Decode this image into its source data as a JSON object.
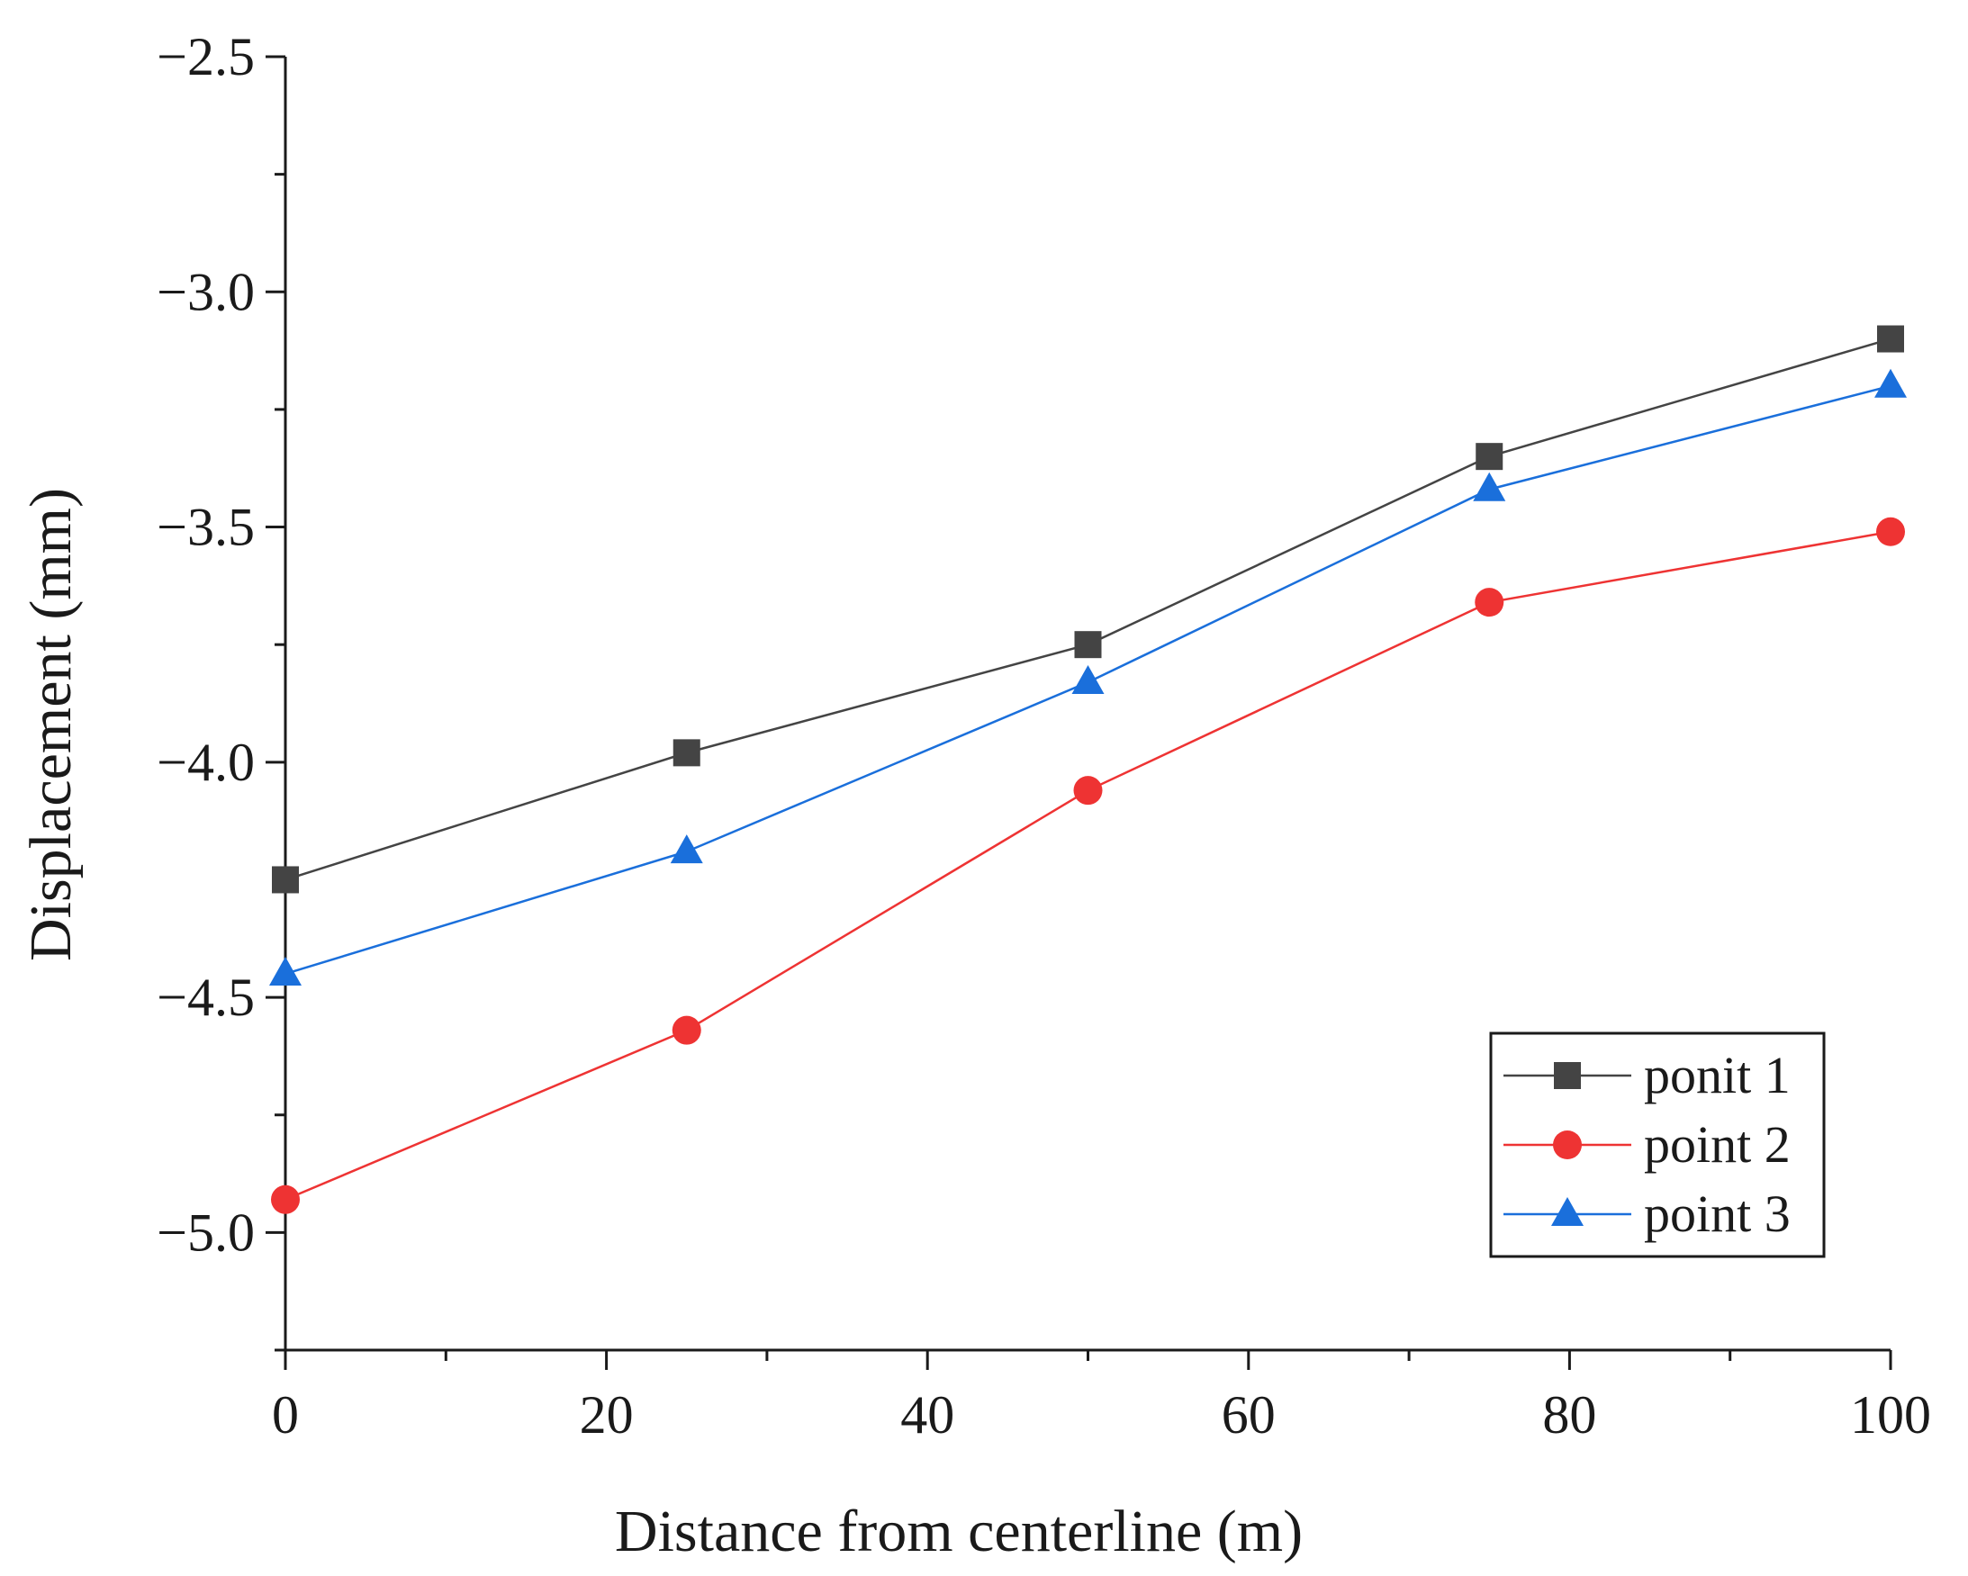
{
  "chart_data": {
    "type": "line",
    "title": "",
    "xlabel": "Distance from centerline (m)",
    "ylabel": "Displacement (mm)",
    "xlim": [
      0,
      100
    ],
    "ylim": [
      -5.25,
      -2.5
    ],
    "x_ticks": [
      0,
      20,
      40,
      60,
      80,
      100
    ],
    "x_tick_labels": [
      "0",
      "20",
      "40",
      "60",
      "80",
      "100"
    ],
    "x_minor_ticks": [
      10,
      30,
      50,
      70,
      90
    ],
    "y_ticks": [
      -2.5,
      -3.0,
      -3.5,
      -4.0,
      -4.5,
      -5.0
    ],
    "y_tick_labels": [
      "−2.5",
      "−3.0",
      "−3.5",
      "−4.0",
      "−4.5",
      "−5.0"
    ],
    "y_minor_ticks": [
      -2.75,
      -3.25,
      -3.75,
      -4.25,
      -4.75,
      -5.25
    ],
    "grid": false,
    "legend_position": "bottom-right",
    "x": [
      0,
      25,
      50,
      75,
      100
    ],
    "series": [
      {
        "name": "ponit 1",
        "marker": "square",
        "color": "#444444",
        "values": [
          -4.25,
          -3.98,
          -3.75,
          -3.35,
          -3.1
        ]
      },
      {
        "name": "point 2",
        "marker": "circle",
        "color": "#ee3333",
        "values": [
          -4.93,
          -4.57,
          -4.06,
          -3.66,
          -3.51
        ]
      },
      {
        "name": "point 3",
        "marker": "triangle",
        "color": "#1a6fdb",
        "values": [
          -4.45,
          -4.19,
          -3.83,
          -3.42,
          -3.2
        ]
      }
    ]
  }
}
